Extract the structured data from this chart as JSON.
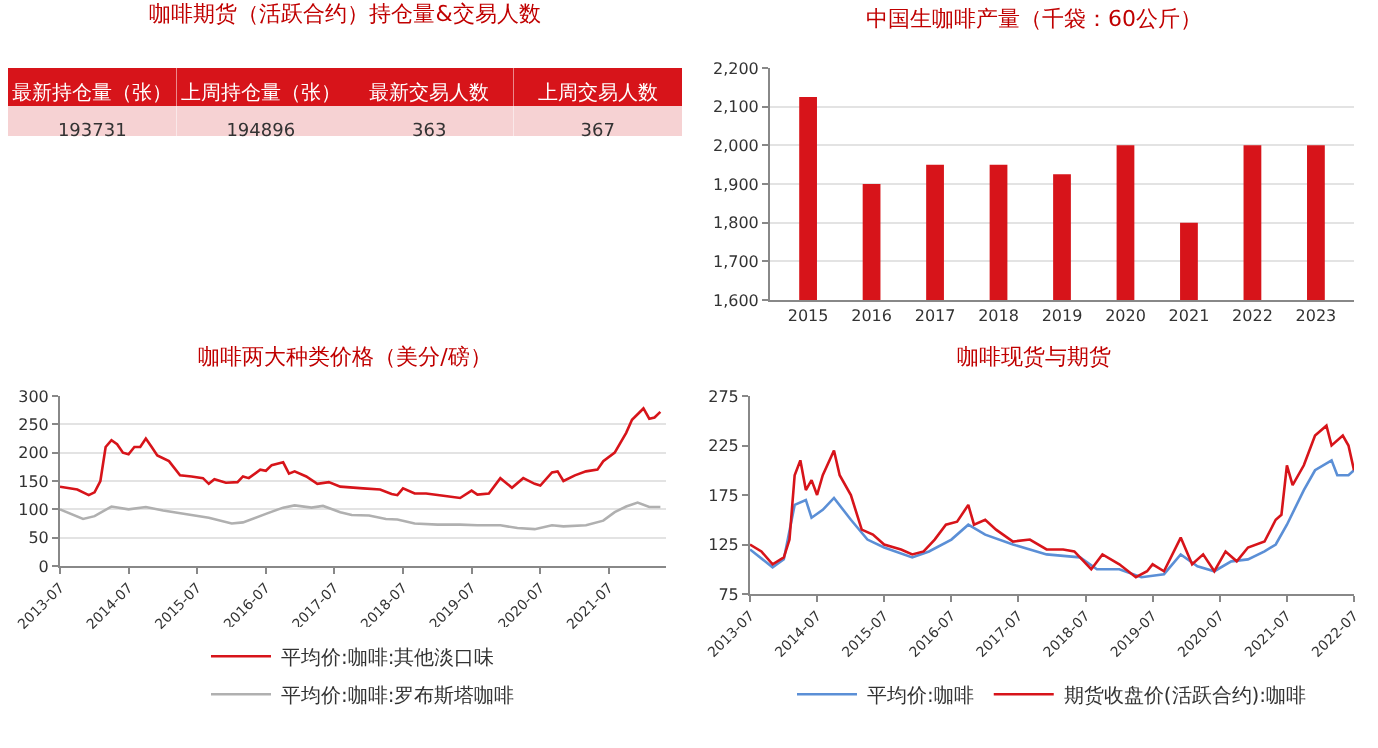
{
  "chart_data": [
    {
      "type": "other",
      "title": "咖啡期货（活跃合约）持仓量&交易人数",
      "categories": [
        "最新持仓量（张）",
        "上周持仓量（张）",
        "最新交易人数",
        "上周交易人数"
      ],
      "values": [
        193731,
        194896,
        363,
        367
      ],
      "data_labels": true
    },
    {
      "type": "bar",
      "title": "中国生咖啡产量（千袋：60公斤）",
      "categories": [
        "2015",
        "2016",
        "2017",
        "2018",
        "2019",
        "2020",
        "2021",
        "2022",
        "2023"
      ],
      "values": [
        2125,
        1900,
        1950,
        1950,
        1925,
        2000,
        1800,
        2000,
        2000
      ],
      "color": "#d7141a",
      "ylim": [
        1600,
        2200
      ],
      "yticks": [
        {
          "value": 1600,
          "label": "1,600"
        },
        {
          "value": 1700,
          "label": "1,700"
        },
        {
          "value": 1800,
          "label": "1,800"
        },
        {
          "value": 1900,
          "label": "1,900"
        },
        {
          "value": 2000,
          "label": "2,000"
        },
        {
          "value": 2100,
          "label": "2,100"
        },
        {
          "value": 2200,
          "label": "2,200"
        }
      ],
      "grid": "y",
      "legend": false
    },
    {
      "type": "line",
      "title": "咖啡两大种类价格（美分/磅）",
      "xlim": [
        "2013-07",
        "2022-05"
      ],
      "xticks": [
        "2013-07",
        "2014-07",
        "2015-07",
        "2016-07",
        "2017-07",
        "2018-07",
        "2019-07",
        "2020-07",
        "2021-07"
      ],
      "ylim": [
        0,
        300
      ],
      "yticks": [
        0,
        50,
        100,
        150,
        200,
        250,
        300
      ],
      "grid": "y",
      "legend": "bottom",
      "marker": "none",
      "line_style": "solid",
      "series": [
        {
          "name": "平均价:咖啡:其他淡口味",
          "color": "#d7141a",
          "x": [
            "2013-07",
            "2013-10",
            "2013-12",
            "2014-01",
            "2014-02",
            "2014-03",
            "2014-04",
            "2014-05",
            "2014-06",
            "2014-07",
            "2014-08",
            "2014-09",
            "2014-10",
            "2014-11",
            "2014-12",
            "2015-02",
            "2015-04",
            "2015-06",
            "2015-08",
            "2015-09",
            "2015-10",
            "2015-12",
            "2016-02",
            "2016-03",
            "2016-04",
            "2016-06",
            "2016-07",
            "2016-08",
            "2016-10",
            "2016-11",
            "2016-12",
            "2017-02",
            "2017-04",
            "2017-06",
            "2017-08",
            "2017-12",
            "2018-03",
            "2018-05",
            "2018-06",
            "2018-07",
            "2018-09",
            "2018-11",
            "2019-02",
            "2019-05",
            "2019-07",
            "2019-08",
            "2019-10",
            "2019-12",
            "2020-02",
            "2020-04",
            "2020-06",
            "2020-07",
            "2020-09",
            "2020-10",
            "2020-11",
            "2021-01",
            "2021-03",
            "2021-05",
            "2021-06",
            "2021-08",
            "2021-10",
            "2021-11",
            "2022-01",
            "2022-02",
            "2022-03",
            "2022-04"
          ],
          "values": [
            140,
            135,
            125,
            130,
            150,
            210,
            222,
            215,
            200,
            197,
            210,
            210,
            225,
            210,
            195,
            185,
            160,
            158,
            155,
            145,
            153,
            147,
            148,
            158,
            155,
            170,
            168,
            178,
            183,
            163,
            167,
            158,
            145,
            148,
            140,
            137,
            135,
            127,
            125,
            137,
            128,
            128,
            124,
            120,
            133,
            126,
            128,
            155,
            138,
            155,
            145,
            142,
            165,
            167,
            150,
            160,
            167,
            170,
            185,
            200,
            235,
            258,
            278,
            260,
            262,
            272
          ]
        },
        {
          "name": "平均价:咖啡:罗布斯塔咖啡",
          "color": "#b0b0b0",
          "x": [
            "2013-07",
            "2013-11",
            "2014-01",
            "2014-04",
            "2014-07",
            "2014-10",
            "2015-01",
            "2015-06",
            "2015-09",
            "2016-01",
            "2016-03",
            "2016-07",
            "2016-10",
            "2016-12",
            "2017-03",
            "2017-05",
            "2017-08",
            "2017-10",
            "2018-01",
            "2018-04",
            "2018-06",
            "2018-09",
            "2019-01",
            "2019-05",
            "2019-08",
            "2019-12",
            "2020-03",
            "2020-06",
            "2020-09",
            "2020-11",
            "2021-03",
            "2021-06",
            "2021-08",
            "2021-10",
            "2021-12",
            "2022-02",
            "2022-04"
          ],
          "values": [
            100,
            83,
            88,
            105,
            100,
            104,
            98,
            90,
            85,
            75,
            77,
            92,
            103,
            107,
            103,
            106,
            95,
            90,
            89,
            83,
            82,
            75,
            73,
            73,
            72,
            72,
            67,
            65,
            72,
            70,
            72,
            80,
            95,
            105,
            112,
            104,
            104
          ]
        }
      ]
    },
    {
      "type": "line",
      "title": "咖啡现货与期货",
      "xlim": [
        "2013-07",
        "2022-07"
      ],
      "xticks": [
        "2013-07",
        "2014-07",
        "2015-07",
        "2016-07",
        "2017-07",
        "2018-07",
        "2019-07",
        "2020-07",
        "2021-07",
        "2022-07"
      ],
      "ylim": [
        75,
        275
      ],
      "yticks": [
        75,
        125,
        175,
        225,
        275
      ],
      "grid": false,
      "legend": "bottom",
      "marker": "none",
      "line_style": "solid",
      "series": [
        {
          "name": "平均价:咖啡",
          "color": "#5b8fd6",
          "x": [
            "2013-07",
            "2013-11",
            "2014-01",
            "2014-03",
            "2014-05",
            "2014-06",
            "2014-08",
            "2014-10",
            "2015-01",
            "2015-04",
            "2015-07",
            "2015-12",
            "2016-03",
            "2016-07",
            "2016-10",
            "2017-01",
            "2017-06",
            "2017-12",
            "2018-06",
            "2018-09",
            "2019-01",
            "2019-05",
            "2019-09",
            "2019-12",
            "2020-03",
            "2020-06",
            "2020-09",
            "2020-12",
            "2021-03",
            "2021-05",
            "2021-07",
            "2021-10",
            "2021-12",
            "2022-03",
            "2022-04",
            "2022-06",
            "2022-07"
          ],
          "values": [
            120,
            102,
            110,
            165,
            170,
            152,
            160,
            172,
            150,
            130,
            122,
            112,
            118,
            130,
            145,
            135,
            125,
            115,
            112,
            100,
            100,
            92,
            95,
            115,
            103,
            98,
            108,
            110,
            118,
            125,
            145,
            180,
            200,
            210,
            195,
            195,
            200
          ]
        },
        {
          "name": "期货收盘价(活跃合约):咖啡",
          "color": "#d7141a",
          "x": [
            "2013-07",
            "2013-09",
            "2013-11",
            "2014-01",
            "2014-02",
            "2014-03",
            "2014-04",
            "2014-05",
            "2014-06",
            "2014-07",
            "2014-08",
            "2014-10",
            "2014-11",
            "2015-01",
            "2015-03",
            "2015-05",
            "2015-07",
            "2015-10",
            "2015-12",
            "2016-02",
            "2016-04",
            "2016-06",
            "2016-08",
            "2016-10",
            "2016-11",
            "2017-01",
            "2017-03",
            "2017-06",
            "2017-09",
            "2017-12",
            "2018-03",
            "2018-05",
            "2018-08",
            "2018-10",
            "2019-01",
            "2019-04",
            "2019-06",
            "2019-07",
            "2019-09",
            "2019-12",
            "2020-02",
            "2020-04",
            "2020-06",
            "2020-08",
            "2020-10",
            "2020-12",
            "2021-03",
            "2021-05",
            "2021-06",
            "2021-07",
            "2021-08",
            "2021-10",
            "2021-12",
            "2022-02",
            "2022-03",
            "2022-05",
            "2022-06",
            "2022-07"
          ],
          "values": [
            125,
            118,
            105,
            112,
            130,
            195,
            210,
            180,
            190,
            175,
            195,
            220,
            195,
            175,
            140,
            135,
            125,
            120,
            115,
            118,
            130,
            145,
            148,
            165,
            145,
            150,
            140,
            128,
            130,
            120,
            120,
            118,
            100,
            115,
            105,
            92,
            98,
            105,
            98,
            132,
            105,
            115,
            98,
            118,
            108,
            122,
            128,
            150,
            155,
            205,
            185,
            205,
            235,
            245,
            225,
            235,
            225,
            200
          ]
        }
      ]
    }
  ]
}
